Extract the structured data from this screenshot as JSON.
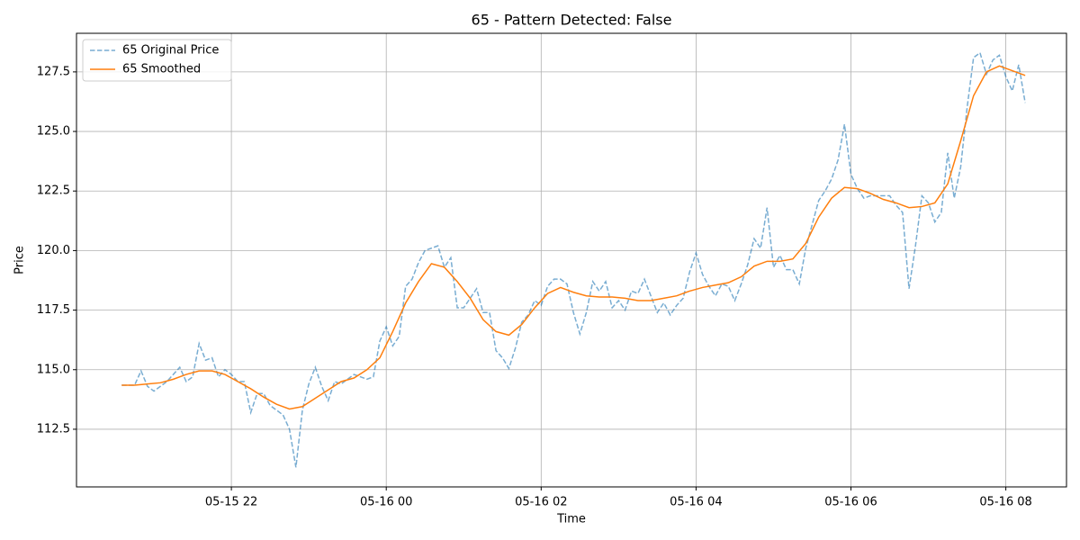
{
  "chart_data": {
    "type": "line",
    "title": "65 - Pattern Detected: False",
    "xlabel": "Time",
    "ylabel": "Price",
    "xlim": [
      1200,
      1967
    ],
    "xticks": [
      {
        "value": 1320,
        "label": "05-15 22"
      },
      {
        "value": 1440,
        "label": "05-16 00"
      },
      {
        "value": 1560,
        "label": "05-16 02"
      },
      {
        "value": 1680,
        "label": "05-16 04"
      },
      {
        "value": 1800,
        "label": "05-16 06"
      },
      {
        "value": 1920,
        "label": "05-16 08"
      }
    ],
    "ylim": [
      110.08,
      129.12
    ],
    "yticks": [
      112.5,
      {
        "value": 115,
        "label": "115.0"
      },
      117.5,
      {
        "value": 120,
        "label": "120.0"
      },
      122.5,
      {
        "value": 125,
        "label": "125.0"
      },
      127.5
    ],
    "grid": true,
    "legend": "upper left",
    "series": [
      {
        "name": "65 Original Price",
        "color": "#1f77b4",
        "dashed": true,
        "x": [
          1235,
          1240,
          1245,
          1250,
          1255,
          1260,
          1265,
          1270,
          1275,
          1280,
          1285,
          1290,
          1295,
          1300,
          1305,
          1310,
          1315,
          1320,
          1325,
          1330,
          1335,
          1340,
          1345,
          1350,
          1355,
          1360,
          1365,
          1370,
          1375,
          1380,
          1385,
          1390,
          1395,
          1400,
          1405,
          1410,
          1415,
          1420,
          1425,
          1430,
          1435,
          1440,
          1445,
          1450,
          1455,
          1460,
          1465,
          1470,
          1475,
          1480,
          1485,
          1490,
          1495,
          1500,
          1505,
          1510,
          1515,
          1520,
          1525,
          1530,
          1535,
          1540,
          1545,
          1550,
          1555,
          1560,
          1565,
          1570,
          1575,
          1580,
          1585,
          1590,
          1595,
          1600,
          1605,
          1610,
          1615,
          1620,
          1625,
          1630,
          1635,
          1640,
          1645,
          1650,
          1655,
          1660,
          1665,
          1670,
          1675,
          1680,
          1685,
          1690,
          1695,
          1700,
          1705,
          1710,
          1715,
          1720,
          1725,
          1730,
          1735,
          1740,
          1745,
          1750,
          1755,
          1760,
          1765,
          1770,
          1775,
          1780,
          1785,
          1790,
          1795,
          1800,
          1805,
          1810,
          1815,
          1820,
          1825,
          1830,
          1835,
          1840,
          1845,
          1850,
          1855,
          1860,
          1865,
          1870,
          1875,
          1880,
          1885,
          1890,
          1895,
          1900,
          1905,
          1910,
          1915,
          1920,
          1925,
          1930,
          1935
        ],
        "values": [
          114.35,
          114.35,
          114.35,
          114.95,
          114.3,
          114.1,
          114.3,
          114.5,
          114.8,
          115.1,
          114.5,
          114.7,
          116.1,
          115.4,
          115.5,
          114.7,
          115.0,
          114.8,
          114.5,
          114.5,
          113.2,
          114.0,
          114.0,
          113.5,
          113.3,
          113.1,
          112.5,
          110.9,
          113.3,
          114.4,
          115.1,
          114.3,
          113.7,
          114.5,
          114.4,
          114.6,
          114.8,
          114.7,
          114.6,
          114.7,
          116.2,
          116.8,
          116.0,
          116.4,
          118.5,
          118.8,
          119.5,
          120.0,
          120.1,
          120.2,
          119.3,
          119.7,
          117.6,
          117.6,
          118.0,
          118.4,
          117.4,
          117.4,
          115.8,
          115.5,
          115.05,
          115.9,
          117.0,
          117.3,
          117.9,
          117.7,
          118.5,
          118.8,
          118.8,
          118.6,
          117.4,
          116.5,
          117.4,
          118.7,
          118.3,
          118.7,
          117.6,
          117.9,
          117.5,
          118.3,
          118.2,
          118.8,
          118.1,
          117.4,
          117.8,
          117.3,
          117.7,
          118.0,
          119.1,
          119.9,
          119.0,
          118.5,
          118.1,
          118.6,
          118.5,
          117.9,
          118.6,
          119.4,
          120.5,
          120.1,
          121.8,
          119.3,
          119.8,
          119.2,
          119.2,
          118.6,
          120.1,
          121.1,
          122.1,
          122.5,
          123.0,
          123.8,
          125.3,
          123.2,
          122.6,
          122.2,
          122.3,
          122.3,
          122.3,
          122.3,
          121.9,
          121.6,
          118.4,
          120.2,
          122.3,
          122.0,
          121.2,
          121.6,
          124.1,
          122.2,
          123.5,
          126.0,
          128.1,
          128.3,
          127.4,
          128.0,
          128.2,
          127.3,
          126.7,
          127.8,
          126.2
        ]
      },
      {
        "name": "65 Smoothed",
        "color": "#ff7f0e",
        "dashed": false,
        "x": [
          1235,
          1245,
          1255,
          1265,
          1275,
          1285,
          1295,
          1305,
          1315,
          1325,
          1335,
          1345,
          1355,
          1365,
          1375,
          1385,
          1395,
          1405,
          1415,
          1425,
          1435,
          1445,
          1455,
          1465,
          1475,
          1485,
          1495,
          1505,
          1515,
          1525,
          1535,
          1545,
          1555,
          1565,
          1575,
          1585,
          1595,
          1605,
          1615,
          1625,
          1635,
          1645,
          1655,
          1665,
          1675,
          1685,
          1695,
          1705,
          1715,
          1725,
          1735,
          1745,
          1755,
          1765,
          1775,
          1785,
          1795,
          1805,
          1815,
          1825,
          1835,
          1845,
          1855,
          1865,
          1875,
          1885,
          1895,
          1905,
          1915,
          1925,
          1935
        ],
        "values": [
          114.35,
          114.35,
          114.4,
          114.45,
          114.6,
          114.8,
          114.95,
          114.95,
          114.8,
          114.5,
          114.2,
          113.85,
          113.55,
          113.35,
          113.45,
          113.8,
          114.15,
          114.5,
          114.65,
          115.0,
          115.5,
          116.6,
          117.8,
          118.7,
          119.45,
          119.3,
          118.7,
          118.0,
          117.1,
          116.6,
          116.45,
          116.9,
          117.6,
          118.2,
          118.45,
          118.25,
          118.1,
          118.05,
          118.05,
          118.0,
          117.9,
          117.9,
          118.0,
          118.1,
          118.3,
          118.45,
          118.55,
          118.65,
          118.9,
          119.35,
          119.55,
          119.55,
          119.65,
          120.3,
          121.4,
          122.2,
          122.65,
          122.6,
          122.4,
          122.15,
          122.0,
          121.8,
          121.85,
          122.0,
          122.8,
          124.6,
          126.5,
          127.5,
          127.75,
          127.55,
          127.35
        ]
      }
    ]
  }
}
